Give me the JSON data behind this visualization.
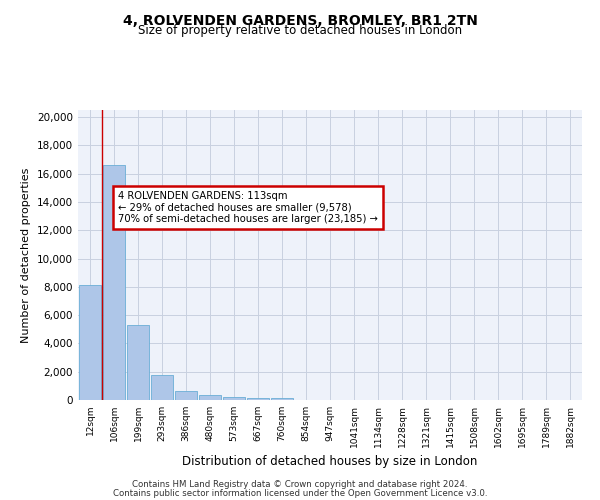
{
  "title_line1": "4, ROLVENDEN GARDENS, BROMLEY, BR1 2TN",
  "title_line2": "Size of property relative to detached houses in London",
  "xlabel": "Distribution of detached houses by size in London",
  "ylabel": "Number of detached properties",
  "bar_labels": [
    "12sqm",
    "106sqm",
    "199sqm",
    "293sqm",
    "386sqm",
    "480sqm",
    "573sqm",
    "667sqm",
    "760sqm",
    "854sqm",
    "947sqm",
    "1041sqm",
    "1134sqm",
    "1228sqm",
    "1321sqm",
    "1415sqm",
    "1508sqm",
    "1602sqm",
    "1695sqm",
    "1789sqm",
    "1882sqm"
  ],
  "bar_values": [
    8100,
    16600,
    5300,
    1800,
    650,
    330,
    190,
    140,
    110,
    0,
    0,
    0,
    0,
    0,
    0,
    0,
    0,
    0,
    0,
    0,
    0
  ],
  "bar_color": "#aec6e8",
  "bar_edge_color": "#6aaed6",
  "property_line_x": 0.5,
  "annotation_title": "4 ROLVENDEN GARDENS: 113sqm",
  "annotation_line1": "← 29% of detached houses are smaller (9,578)",
  "annotation_line2": "70% of semi-detached houses are larger (23,185) →",
  "annotation_box_color": "#ffffff",
  "annotation_box_edge": "#cc0000",
  "vline_color": "#cc0000",
  "ylim": [
    0,
    20500
  ],
  "yticks": [
    0,
    2000,
    4000,
    6000,
    8000,
    10000,
    12000,
    14000,
    16000,
    18000,
    20000
  ],
  "grid_color": "#c8d0e0",
  "background_color": "#eef2fa",
  "footer_line1": "Contains HM Land Registry data © Crown copyright and database right 2024.",
  "footer_line2": "Contains public sector information licensed under the Open Government Licence v3.0."
}
